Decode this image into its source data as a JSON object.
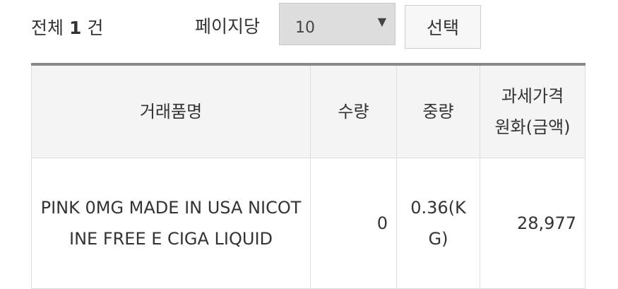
{
  "summary": {
    "prefix": "전체",
    "count": "1",
    "suffix": "건"
  },
  "paging": {
    "label": "페이지당",
    "selected": "10",
    "arrow": "▼",
    "button": "선택"
  },
  "table": {
    "headers": [
      "거래품명",
      "수량",
      "중량",
      "과세가격\n원화(금액)"
    ],
    "rows": [
      [
        "PINK 0MG MADE IN USA NICOTINE FREE E CIGA LIQUID",
        "0",
        "0.36(KG)",
        "28,977"
      ]
    ]
  }
}
